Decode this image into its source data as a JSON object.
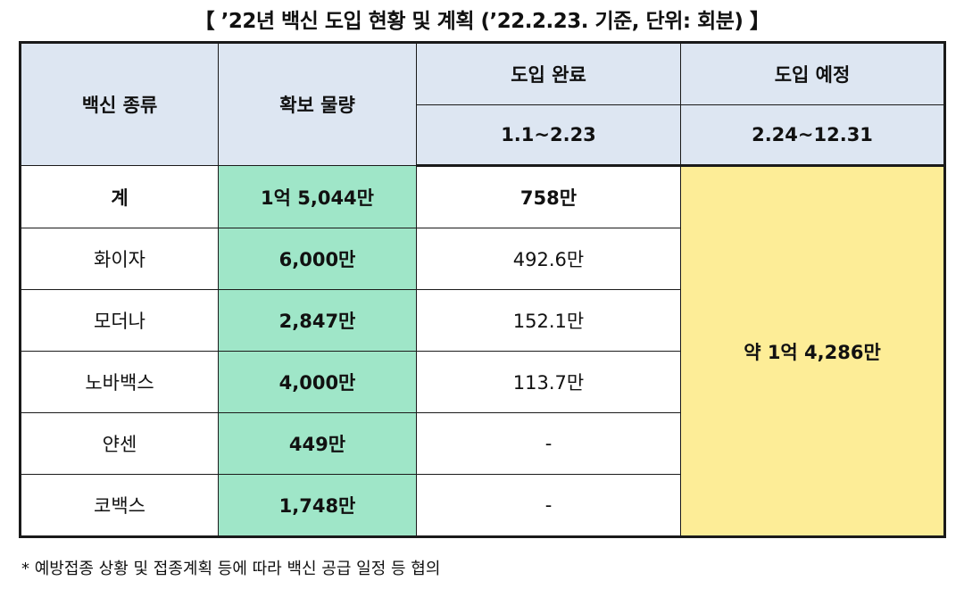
{
  "title": "【 ’22년 백신 도입 현황 및 계획 (’22.2.23. 기준, 단위: 회분) 】",
  "table": {
    "headers": {
      "vaccine_type": "백신 종류",
      "secured_amount": "확보 물량",
      "introduced": "도입 완료",
      "introduced_period": "1.1~2.23",
      "planned": "도입 예정",
      "planned_period": "2.24~12.31"
    },
    "rows": [
      {
        "name": "계",
        "secured": "1억 5,044만",
        "introduced": "758만"
      },
      {
        "name": "화이자",
        "secured": "6,000만",
        "introduced": "492.6만"
      },
      {
        "name": "모더나",
        "secured": "2,847만",
        "introduced": "152.1만"
      },
      {
        "name": "노바백스",
        "secured": "4,000만",
        "introduced": "113.7만"
      },
      {
        "name": "얀센",
        "secured": "449만",
        "introduced": "-"
      },
      {
        "name": "코백스",
        "secured": "1,748만",
        "introduced": "-"
      }
    ],
    "planned_total": "약 1억 4,286만"
  },
  "note": "* 예방접종 상황 및 접종계획 등에 따라 백신 공급 일정 등 협의",
  "colors": {
    "header_bg": "#dde6f2",
    "secured_bg": "#9fe6c8",
    "planned_bg": "#fded97"
  }
}
